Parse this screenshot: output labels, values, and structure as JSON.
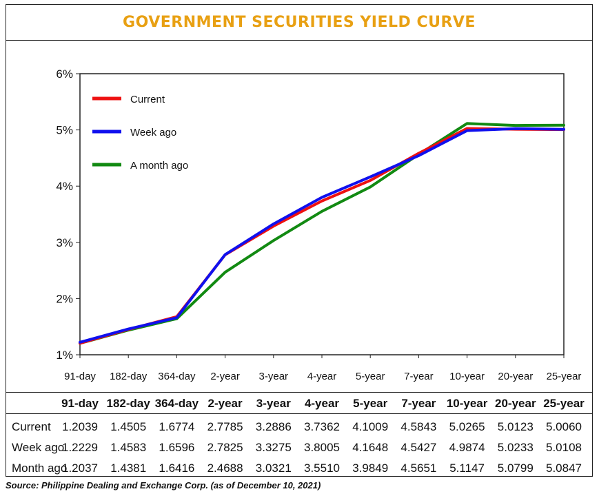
{
  "title": "GOVERNMENT SECURITIES YIELD CURVE",
  "title_color": "#e8a013",
  "source": "Source: Philippine Dealing and Exchange Corp. (as of December  10, 2021)",
  "chart_data": {
    "type": "line",
    "title": "",
    "xlabel": "",
    "ylabel": "",
    "categories": [
      "91-day",
      "182-day",
      "364-day",
      "2-year",
      "3-year",
      "4-year",
      "5-year",
      "7-year",
      "10-year",
      "20-year",
      "25-year"
    ],
    "y_ticks": [
      "1%",
      "2%",
      "3%",
      "4%",
      "5%",
      "6%"
    ],
    "ylim": [
      1,
      6
    ],
    "grid": false,
    "legend_position": "top-left",
    "series": [
      {
        "name": "Current",
        "color": "#ee1111",
        "values": [
          1.2039,
          1.4505,
          1.6774,
          2.7785,
          3.2886,
          3.7362,
          4.1009,
          4.5843,
          5.0265,
          5.0123,
          5.006
        ]
      },
      {
        "name": "Week ago",
        "color": "#1010ee",
        "values": [
          1.2229,
          1.4583,
          1.6596,
          2.7825,
          3.3275,
          3.8005,
          4.1648,
          4.5427,
          4.9874,
          5.0233,
          5.0108
        ]
      },
      {
        "name": "A month ago",
        "color": "#128a12",
        "values": [
          1.2037,
          1.4381,
          1.6416,
          2.4688,
          3.0321,
          3.551,
          3.9849,
          4.5651,
          5.1147,
          5.0799,
          5.0847
        ]
      }
    ]
  },
  "table": {
    "headers": [
      "91-day",
      "182-day",
      "364-day",
      "2-year",
      "3-year",
      "4-year",
      "5-year",
      "7-year",
      "10-year",
      "20-year",
      "25-year"
    ],
    "rows": [
      {
        "label": "Current",
        "values": [
          "1.2039",
          "1.4505",
          "1.6774",
          "2.7785",
          "3.2886",
          "3.7362",
          "4.1009",
          "4.5843",
          "5.0265",
          "5.0123",
          "5.0060"
        ]
      },
      {
        "label": "Week ago",
        "values": [
          "1.2229",
          "1.4583",
          "1.6596",
          "2.7825",
          "3.3275",
          "3.8005",
          "4.1648",
          "4.5427",
          "4.9874",
          "5.0233",
          "5.0108"
        ]
      },
      {
        "label": "Month ago",
        "values": [
          "1.2037",
          "1.4381",
          "1.6416",
          "2.4688",
          "3.0321",
          "3.5510",
          "3.9849",
          "4.5651",
          "5.1147",
          "5.0799",
          "5.0847"
        ]
      }
    ]
  }
}
